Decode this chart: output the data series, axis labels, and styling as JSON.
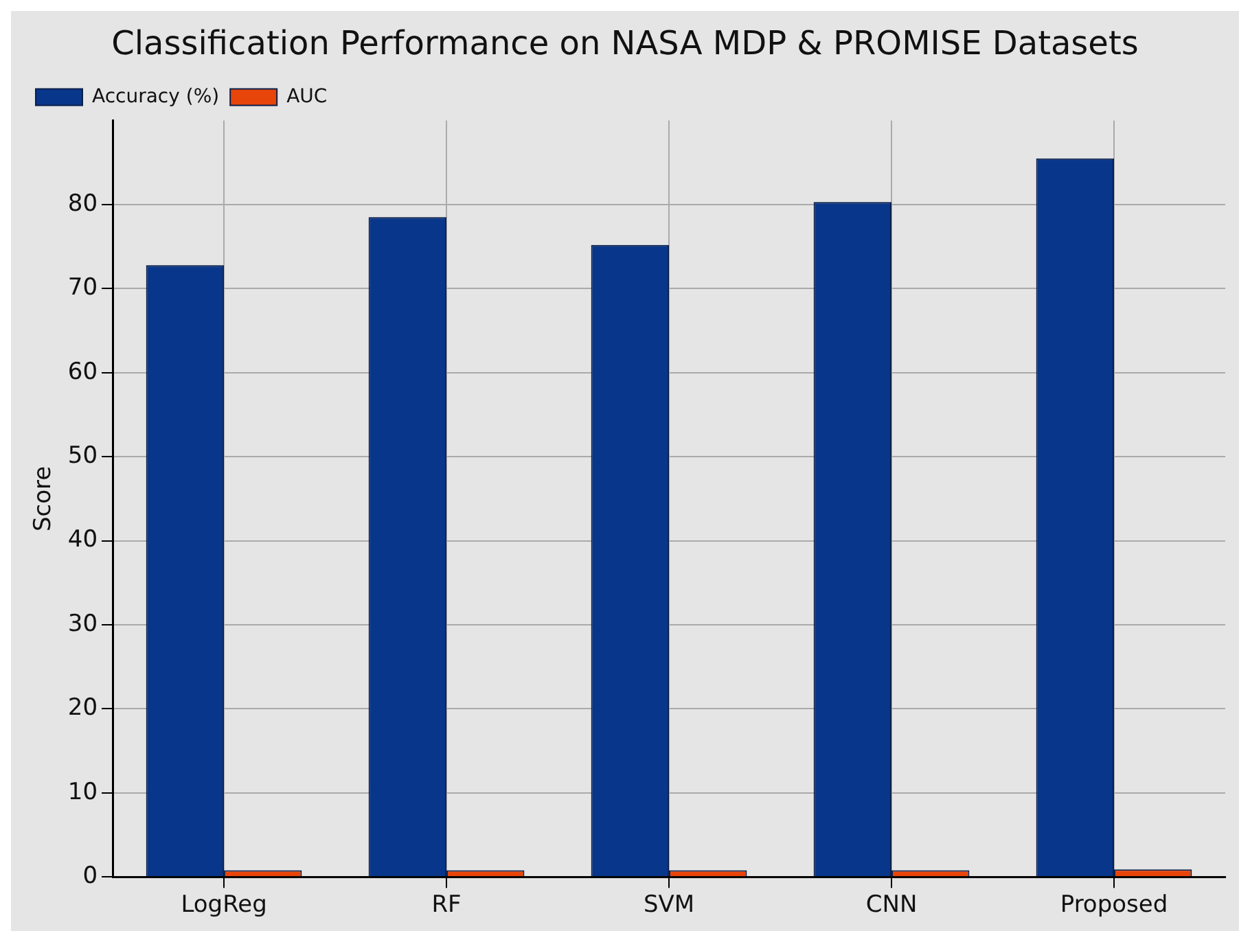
{
  "chart_data": {
    "type": "bar",
    "title": "Classification Performance on NASA MDP & PROMISE Datasets",
    "ylabel": "Score",
    "categories": [
      "LogReg",
      "RF",
      "SVM",
      "CNN",
      "Proposed"
    ],
    "series": [
      {
        "name": "Accuracy (%)",
        "color": "#08368a",
        "values": [
          72.8,
          78.5,
          75.2,
          80.3,
          85.5
        ]
      },
      {
        "name": "AUC",
        "color": "#e8450a",
        "values": [
          0.8,
          0.8,
          0.8,
          0.8,
          0.9
        ]
      }
    ],
    "ylim": [
      0,
      90
    ],
    "yticks": [
      0,
      10,
      20,
      30,
      40,
      50,
      60,
      70,
      80
    ],
    "grid": true,
    "legend": "top left"
  }
}
